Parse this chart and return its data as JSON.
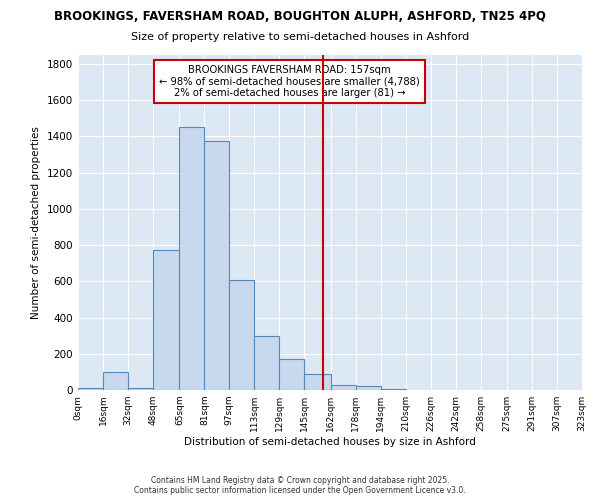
{
  "title_line1": "BROOKINGS, FAVERSHAM ROAD, BOUGHTON ALUPH, ASHFORD, TN25 4PQ",
  "title_line2": "Size of property relative to semi-detached houses in Ashford",
  "xlabel": "Distribution of semi-detached houses by size in Ashford",
  "ylabel": "Number of semi-detached properties",
  "bin_edges": [
    0,
    16,
    32,
    48,
    65,
    81,
    97,
    113,
    129,
    145,
    162,
    178,
    194,
    210,
    226,
    242,
    258,
    275,
    291,
    307,
    323
  ],
  "bin_labels": [
    "0sqm",
    "16sqm",
    "32sqm",
    "48sqm",
    "65sqm",
    "81sqm",
    "97sqm",
    "113sqm",
    "129sqm",
    "145sqm",
    "162sqm",
    "178sqm",
    "194sqm",
    "210sqm",
    "226sqm",
    "242sqm",
    "258sqm",
    "275sqm",
    "291sqm",
    "307sqm",
    "323sqm"
  ],
  "counts": [
    10,
    100,
    10,
    775,
    1450,
    1375,
    610,
    300,
    170,
    90,
    30,
    20,
    5,
    0,
    0,
    0,
    0,
    0,
    0,
    0
  ],
  "bar_color": "#c8d8ee",
  "bar_edge_color": "#5588bb",
  "vline_x": 157,
  "vline_color": "#cc0000",
  "annotation_title": "BROOKINGS FAVERSHAM ROAD: 157sqm",
  "annotation_line2": "← 98% of semi-detached houses are smaller (4,788)",
  "annotation_line3": "2% of semi-detached houses are larger (81) →",
  "annotation_box_color": "#ffffff",
  "annotation_box_edge": "#cc0000",
  "ylim": [
    0,
    1850
  ],
  "yticks": [
    0,
    200,
    400,
    600,
    800,
    1000,
    1200,
    1400,
    1600,
    1800
  ],
  "fig_bg_color": "#ffffff",
  "plot_bg_color": "#dde8f5",
  "grid_color": "#ffffff",
  "footer": "Contains HM Land Registry data © Crown copyright and database right 2025.\nContains public sector information licensed under the Open Government Licence v3.0."
}
